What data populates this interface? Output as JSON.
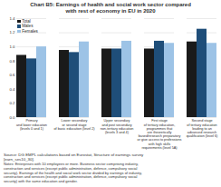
{
  "chart_data": {
    "type": "bar",
    "title": "Chart B5: Earnings of health and social work sector compared\nwith rest of economy in EU in 2020",
    "categories": [
      "Primary\nand lower education\n(levels 0 and 1)",
      "Lower secondary\nor second stage\nof basic education (level 2)",
      "Upper secondary\nand post secondary\nnon-tertiary education\n(levels 3 and 4)",
      "First stage\nof tertiary education,\nprogrammes that\nare theoretically\nbased/research preparatory\nor give access to professions\nwith high skills\nrequirements (level 5A)",
      "Second stage\nof tertiary education\nleading to an\nadvanced research\nqualification (level 6)"
    ],
    "series": [
      {
        "name": "Total",
        "color": "#1a1a1a",
        "values": [
          0.88,
          0.95,
          0.97,
          0.97,
          1.07
        ]
      },
      {
        "name": "Males",
        "color": "#1f4e79",
        "values": [
          0.83,
          0.92,
          0.97,
          1.08,
          1.25
        ]
      },
      {
        "name": "Females",
        "color": "#9dc3e6",
        "values": [
          1.0,
          1.07,
          1.08,
          1.05,
          1.05
        ]
      }
    ],
    "ylim": [
      0,
      1.4
    ],
    "yticks": [
      {
        "value": 0,
        "label": "0.0"
      },
      0.2,
      0.4,
      0.6,
      0.8,
      {
        "value": 1,
        "label": "1.0"
      },
      1.2,
      1.4
    ],
    "grid": true,
    "legend": "upper left",
    "annotations": [
      "Source: DG EMPL calculations based on Eurostat, Structure of earnings survey\n[earn_ses10_30].",
      "Notes: Enterprises with 10 employees or more. Business sector comprising industry,\nconstruction and services (except public administration, defence, compulsory social\nsecurity). Earnings of the health and social work sector divided by earnings of industry,\nconstruction and services (except public administration, defence, compulsory social\nsecurity) with the same education and gender."
    ]
  }
}
